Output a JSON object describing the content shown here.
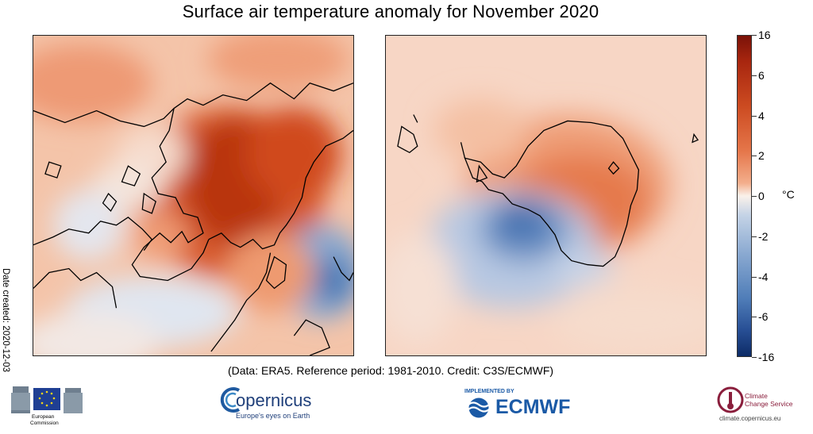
{
  "title": "Surface air temperature anomaly for November 2020",
  "date_created": "Date created: 2020-12-03",
  "caption": "(Data: ERA5.  Reference period: 1981-2010.  Credit: C3S/ECMWF)",
  "maps": [
    {
      "name": "Arctic (north polar view)",
      "dominant_anomaly": "strong warm anomaly over Arctic Ocean and Siberian coast, cool over NE Canada/Greenland west and NW Asia"
    },
    {
      "name": "Antarctic (south polar view)",
      "dominant_anomaly": "warm over East Antarctica, cold over Weddell Sea sector"
    }
  ],
  "colorbar": {
    "unit": "°C",
    "tick_labels": [
      "16",
      "6",
      "4",
      "2",
      "0",
      "-2",
      "-4",
      "-6",
      "-16"
    ],
    "colors": {
      "max": "#7a1208",
      "warm": "#e5764a",
      "neutral": "#faf1ea",
      "cool": "#8aa9d1",
      "min": "#0d2b66"
    }
  },
  "logos": {
    "ec": {
      "line1": "European",
      "line2": "Commission"
    },
    "copernicus": {
      "name": "opernicus",
      "tagline": "Europe's eyes on Earth"
    },
    "ecmwf": {
      "kicker": "IMPLEMENTED BY",
      "name": "ECMWF",
      "color": "#1b5aa6"
    },
    "c3s": {
      "line1": "Climate",
      "line2": "Change Service",
      "url": "climate.copernicus.eu",
      "color": "#8a1e3c"
    }
  }
}
